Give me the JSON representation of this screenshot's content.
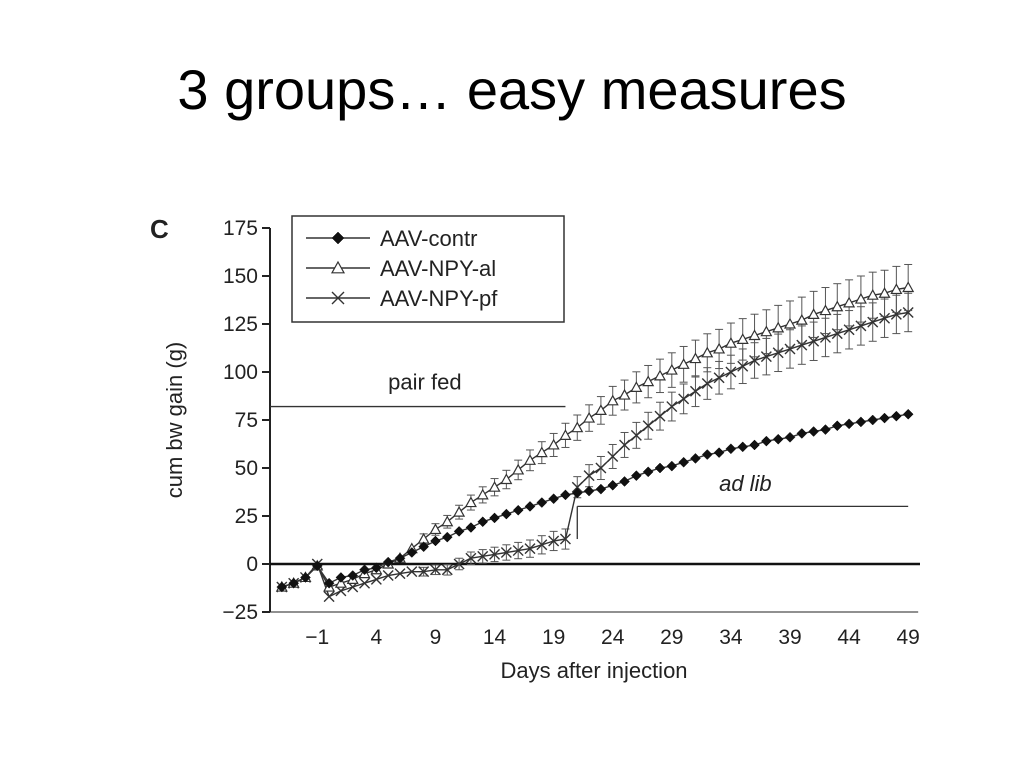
{
  "slide": {
    "title": "3 groups… easy measures"
  },
  "chart_data": {
    "type": "line",
    "panel_label": "C",
    "title": "",
    "xlabel": "Days after injection",
    "ylabel": "cum bw gain (g)",
    "xlim": [
      -5,
      50
    ],
    "ylim": [
      -25,
      175
    ],
    "x_ticks": [
      -1,
      4,
      9,
      14,
      19,
      24,
      29,
      34,
      39,
      44,
      49
    ],
    "x_tick_labels": [
      "−1",
      "4",
      "9",
      "14",
      "19",
      "24",
      "29",
      "34",
      "39",
      "44",
      "49"
    ],
    "y_ticks": [
      -25,
      0,
      25,
      50,
      75,
      100,
      125,
      150,
      175
    ],
    "y_tick_labels": [
      "−25",
      "0",
      "25",
      "50",
      "75",
      "100",
      "125",
      "150",
      "175"
    ],
    "grid": false,
    "legend_position": "top-left",
    "series": [
      {
        "name": "AAV-contr",
        "marker": "diamond",
        "points": [
          [
            -4,
            -12
          ],
          [
            -3,
            -10
          ],
          [
            -2,
            -7
          ],
          [
            -1,
            -1
          ],
          [
            0,
            -10
          ],
          [
            1,
            -7
          ],
          [
            2,
            -6
          ],
          [
            3,
            -3
          ],
          [
            4,
            -2
          ],
          [
            5,
            1
          ],
          [
            6,
            3
          ],
          [
            7,
            6
          ],
          [
            8,
            9
          ],
          [
            9,
            12
          ],
          [
            10,
            14
          ],
          [
            11,
            17
          ],
          [
            12,
            19
          ],
          [
            13,
            22
          ],
          [
            14,
            24
          ],
          [
            15,
            26
          ],
          [
            16,
            28
          ],
          [
            17,
            30
          ],
          [
            18,
            32
          ],
          [
            19,
            34
          ],
          [
            20,
            36
          ],
          [
            21,
            37
          ],
          [
            22,
            38
          ],
          [
            23,
            39
          ],
          [
            24,
            41
          ],
          [
            25,
            43
          ],
          [
            26,
            46
          ],
          [
            27,
            48
          ],
          [
            28,
            50
          ],
          [
            29,
            51
          ],
          [
            30,
            53
          ],
          [
            31,
            55
          ],
          [
            32,
            57
          ],
          [
            33,
            58
          ],
          [
            34,
            60
          ],
          [
            35,
            61
          ],
          [
            36,
            62
          ],
          [
            37,
            64
          ],
          [
            38,
            65
          ],
          [
            39,
            66
          ],
          [
            40,
            68
          ],
          [
            41,
            69
          ],
          [
            42,
            70
          ],
          [
            43,
            72
          ],
          [
            44,
            73
          ],
          [
            45,
            74
          ],
          [
            46,
            75
          ],
          [
            47,
            76
          ],
          [
            48,
            77
          ],
          [
            49,
            78
          ]
        ]
      },
      {
        "name": "AAV-NPY-al",
        "marker": "triangle",
        "points": [
          [
            -4,
            -12
          ],
          [
            -3,
            -10
          ],
          [
            -2,
            -7
          ],
          [
            -1,
            -1
          ],
          [
            0,
            -12
          ],
          [
            1,
            -10
          ],
          [
            2,
            -8
          ],
          [
            3,
            -5
          ],
          [
            4,
            -3
          ],
          [
            5,
            0
          ],
          [
            6,
            3
          ],
          [
            7,
            8
          ],
          [
            8,
            13
          ],
          [
            9,
            18
          ],
          [
            10,
            22
          ],
          [
            11,
            27
          ],
          [
            12,
            32
          ],
          [
            13,
            36
          ],
          [
            14,
            40
          ],
          [
            15,
            44
          ],
          [
            16,
            49
          ],
          [
            17,
            54
          ],
          [
            18,
            58
          ],
          [
            19,
            62
          ],
          [
            20,
            67
          ],
          [
            21,
            71
          ],
          [
            22,
            76
          ],
          [
            23,
            80
          ],
          [
            24,
            85
          ],
          [
            25,
            88
          ],
          [
            26,
            92
          ],
          [
            27,
            95
          ],
          [
            28,
            98
          ],
          [
            29,
            101
          ],
          [
            30,
            104
          ],
          [
            31,
            107
          ],
          [
            32,
            110
          ],
          [
            33,
            112
          ],
          [
            34,
            115
          ],
          [
            35,
            117
          ],
          [
            36,
            119
          ],
          [
            37,
            121
          ],
          [
            38,
            123
          ],
          [
            39,
            125
          ],
          [
            40,
            127
          ],
          [
            41,
            130
          ],
          [
            42,
            132
          ],
          [
            43,
            134
          ],
          [
            44,
            136
          ],
          [
            45,
            138
          ],
          [
            46,
            140
          ],
          [
            47,
            141
          ],
          [
            48,
            143
          ],
          [
            49,
            144
          ]
        ],
        "error_bar": 12
      },
      {
        "name": "AAV-NPY-pf",
        "marker": "x",
        "points": [
          [
            -4,
            -12
          ],
          [
            -3,
            -10
          ],
          [
            -2,
            -7
          ],
          [
            -1,
            0
          ],
          [
            0,
            -17
          ],
          [
            1,
            -14
          ],
          [
            2,
            -12
          ],
          [
            3,
            -10
          ],
          [
            4,
            -8
          ],
          [
            5,
            -6
          ],
          [
            6,
            -5
          ],
          [
            7,
            -4
          ],
          [
            8,
            -4
          ],
          [
            9,
            -3
          ],
          [
            10,
            -3
          ],
          [
            11,
            0
          ],
          [
            12,
            3
          ],
          [
            13,
            4
          ],
          [
            14,
            5
          ],
          [
            15,
            6
          ],
          [
            16,
            7
          ],
          [
            17,
            8
          ],
          [
            18,
            10
          ],
          [
            19,
            12
          ],
          [
            20,
            13
          ],
          [
            21,
            40
          ],
          [
            22,
            46
          ],
          [
            23,
            50
          ],
          [
            24,
            56
          ],
          [
            25,
            62
          ],
          [
            26,
            67
          ],
          [
            27,
            72
          ],
          [
            28,
            77
          ],
          [
            29,
            82
          ],
          [
            30,
            86
          ],
          [
            31,
            90
          ],
          [
            32,
            94
          ],
          [
            33,
            97
          ],
          [
            34,
            100
          ],
          [
            35,
            103
          ],
          [
            36,
            106
          ],
          [
            37,
            108
          ],
          [
            38,
            110
          ],
          [
            39,
            112
          ],
          [
            40,
            114
          ],
          [
            41,
            116
          ],
          [
            42,
            118
          ],
          [
            43,
            120
          ],
          [
            44,
            122
          ],
          [
            45,
            124
          ],
          [
            46,
            126
          ],
          [
            47,
            128
          ],
          [
            48,
            130
          ],
          [
            49,
            131
          ]
        ],
        "error_bar": 10
      }
    ],
    "annotations": [
      {
        "text": "pair fed",
        "x": 5,
        "y": 91
      },
      {
        "text": "ad lib",
        "x": 33,
        "y": 38
      }
    ],
    "reference_lines": [
      {
        "label": "pair fed",
        "x_start": -5,
        "x_end": 20,
        "y": 82
      },
      {
        "label": "ad lib",
        "x_start": 21,
        "x_end": 49,
        "y": 30
      }
    ]
  }
}
